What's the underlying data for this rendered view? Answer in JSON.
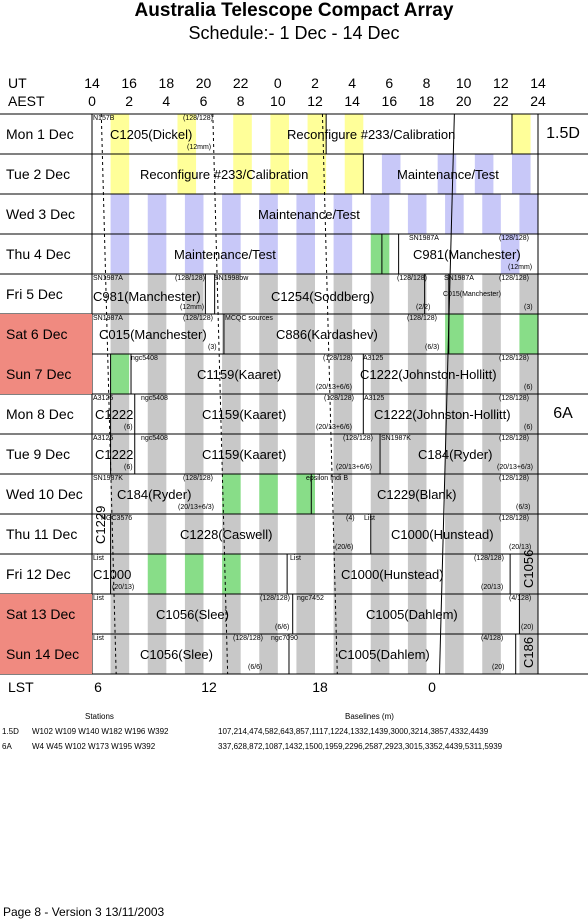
{
  "header": {
    "title": "Australia Telescope Compact Array",
    "subtitle": "Schedule:- 1  Dec - 14 Dec",
    "ut_label": "UT",
    "aest_label": "AEST",
    "lst_label": "LST",
    "ut_ticks": [
      "14",
      "16",
      "18",
      "20",
      "22",
      "0",
      "2",
      "4",
      "6",
      "8",
      "10",
      "12",
      "14"
    ],
    "aest_ticks": [
      "0",
      "2",
      "4",
      "6",
      "8",
      "10",
      "12",
      "14",
      "16",
      "18",
      "20",
      "22",
      "24"
    ],
    "lst_ticks": [
      "6",
      "12",
      "18",
      "0"
    ]
  },
  "days": [
    {
      "label": "Mon   1  Dec",
      "weekend": false
    },
    {
      "label": "Tue   2  Dec",
      "weekend": false
    },
    {
      "label": "Wed   3  Dec",
      "weekend": false
    },
    {
      "label": "Thu   4  Dec",
      "weekend": false
    },
    {
      "label": "Fri    5  Dec",
      "weekend": false
    },
    {
      "label": "Sat   6  Dec",
      "weekend": true
    },
    {
      "label": "Sun   7  Dec",
      "weekend": true
    },
    {
      "label": "Mon   8  Dec",
      "weekend": false
    },
    {
      "label": "Tue   9  Dec",
      "weekend": false
    },
    {
      "label": "Wed  10  Dec",
      "weekend": false
    },
    {
      "label": "Thu   11  Dec",
      "weekend": false
    },
    {
      "label": "Fri   12  Dec",
      "weekend": false
    },
    {
      "label": "Sat   13  Dec",
      "weekend": true
    },
    {
      "label": "Sun   14  Dec",
      "weekend": true
    }
  ],
  "configs": [
    {
      "label": "1.5D"
    },
    {
      "label": "6A"
    }
  ],
  "labels": {
    "d1": {
      "t1": "C1205(Dickel)",
      "t2": "Reconfigure #233/Calibration",
      "s1": "N157B",
      "s2": "(128/128)",
      "s3": "(12mm)"
    },
    "d2": {
      "t1": "Reconfigure #233/Calibration",
      "t2": "Maintenance/Test"
    },
    "d3": {
      "t1": "Maintenance/Test"
    },
    "d4": {
      "t1": "Maintenance/Test",
      "t2": "C981(Manchester)",
      "s1": "SN1987A",
      "s2": "(128/128)",
      "s3": "(12mm)"
    },
    "d5": {
      "t1": "C981(Manchester)",
      "t2": "C1254(Soddberg)",
      "t3": "C015(Manchester)",
      "s1": "SN1987A",
      "s2": "(128/128)",
      "s3": "(12mm)",
      "s4": "SN1998bw",
      "s5": "(128/128)",
      "s6": "(2/2)",
      "s7": "SN1987A",
      "s8": "(128/128)",
      "s9": "(3)"
    },
    "d6": {
      "t1": "C015(Manchester)",
      "t2": "C886(Kardashev)",
      "s1": "SN1987A",
      "s2": "(128/128)",
      "s3": "(3)",
      "s4": "MCQC sources",
      "s5": "(128/128)",
      "s6": "(6/3)"
    },
    "d7": {
      "t1": "C1159(Kaaret)",
      "t2": "C1222(Johnston-Hollitt)",
      "s1": "ngc5408",
      "s2": "(128/128)",
      "s3": "(20/13+6/6)",
      "s4": "A3125",
      "s5": "(128/128)",
      "s6": "(6)"
    },
    "d8": {
      "t1": "C1222",
      "t2": "C1159(Kaaret)",
      "t3": "C1222(Johnston-Hollitt)",
      "s1": "A3125",
      "s2": "(6)",
      "s3": "ngc5408",
      "s4": "(128/128)",
      "s5": "(20/13+6/6)",
      "s6": "A3125",
      "s7": "(128/128)",
      "s8": "(6)"
    },
    "d9": {
      "t1": "C1222",
      "t2": "C1159(Kaaret)",
      "t3": "C184(Ryder)",
      "s1": "A3125",
      "s2": "(6)",
      "s3": "ngc5408",
      "s4": "(128/128)",
      "s5": "(20/13+6/6)",
      "s6": "SN1987K",
      "s7": "(128/128)",
      "s8": "(20/13+6/3)"
    },
    "d10": {
      "t1": "C184(Ryder)",
      "t2": "C1229(Blank)",
      "s1": "SN1987K",
      "s2": "(128/128)",
      "s3": "(20/13+6/3)",
      "s4": "epsilon Indi B",
      "s5": "(128/128)",
      "s6": "(6/3)"
    },
    "d11": {
      "t1": "C1228(Caswell)",
      "t2": "C1000(Hunstead)",
      "t3": "C1229",
      "s1": "NGC3576",
      "s2": "(4)",
      "s3": "(20/6)",
      "s4": "List",
      "s5": "(128/128)",
      "s6": "(20/13)"
    },
    "d12": {
      "t1": "C1000",
      "t2": "C1000(Hunstead)",
      "t3": "C1056",
      "s1": "List",
      "s2": "(20/13)",
      "s3": "List",
      "s4": "(128/128)",
      "s5": "(20/13)"
    },
    "d13": {
      "t1": "C1056(Slee)",
      "t2": "C1005(Dahlem)",
      "s1": "List",
      "s2": "(128/128)",
      "s3": "(6/6)",
      "s4": "ngc7452",
      "s5": "(4/128)",
      "s6": "(20)"
    },
    "d14": {
      "t1": "C1056(Slee)",
      "t2": "C1005(Dahlem)",
      "t3": "C186",
      "s1": "List",
      "s2": "(128/128)",
      "s3": "(6/6)",
      "s4": "ngc7090",
      "s5": "(4/128)",
      "s6": "(20)"
    }
  },
  "stations": {
    "stations_header": "Stations",
    "baselines_header": "Baselines (m)",
    "rows": [
      {
        "config": "1.5D",
        "stations": "W102  W109  W140  W182  W196  W392",
        "baselines": "107,214,474,582,643,857,1117,1224,1332,1439,3000,3214,3857,4332,4439"
      },
      {
        "config": "6A",
        "stations": "W4  W45  W102  W173  W195  W392",
        "baselines": "337,628,872,1087,1432,1500,1959,2296,2587,2923,3015,3352,4439,5311,5939"
      }
    ]
  },
  "footer": {
    "text": "Page 8 - Version 3  13/11/2003"
  },
  "colors": {
    "weekend": "#f08a80",
    "grey_band": "#c8c8c8",
    "yellow_band": "#ffff99",
    "lavender_band": "#c8c8f8",
    "green_band": "#88dd88"
  }
}
